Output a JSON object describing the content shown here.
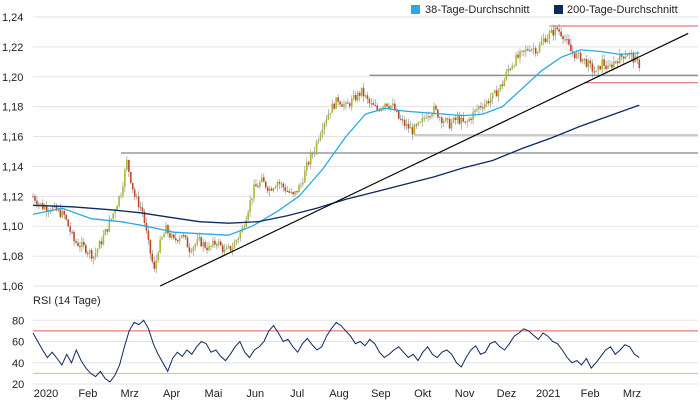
{
  "chart_data": [
    {
      "type": "candlestick",
      "title": "",
      "legend_position": "top-right",
      "ylim": [
        1.06,
        1.24
      ],
      "y_ticks": [
        "1,24",
        "1,22",
        "1,20",
        "1,18",
        "1,16",
        "1,14",
        "1,12",
        "1,10",
        "1,08",
        "1,06"
      ],
      "x_tick_labels": [
        "2020",
        "Feb",
        "Mrz",
        "Apr",
        "Mai",
        "Jun",
        "Jul",
        "Aug",
        "Sep",
        "Okt",
        "Nov",
        "Dez",
        "2021",
        "Feb",
        "Mrz"
      ],
      "close_path": [
        [
          0,
          1.12
        ],
        [
          5,
          1.113
        ],
        [
          10,
          1.112
        ],
        [
          16,
          1.107
        ],
        [
          21,
          1.09
        ],
        [
          27,
          1.085
        ],
        [
          31,
          1.08
        ],
        [
          35,
          1.09
        ],
        [
          40,
          1.105
        ],
        [
          45,
          1.123
        ],
        [
          48,
          1.143
        ],
        [
          52,
          1.12
        ],
        [
          56,
          1.11
        ],
        [
          59,
          1.088
        ],
        [
          62,
          1.07
        ],
        [
          64,
          1.085
        ],
        [
          68,
          1.098
        ],
        [
          72,
          1.09
        ],
        [
          76,
          1.095
        ],
        [
          80,
          1.085
        ],
        [
          85,
          1.09
        ],
        [
          90,
          1.085
        ],
        [
          94,
          1.09
        ],
        [
          98,
          1.083
        ],
        [
          102,
          1.086
        ],
        [
          107,
          1.098
        ],
        [
          110,
          1.112
        ],
        [
          113,
          1.125
        ],
        [
          117,
          1.13
        ],
        [
          121,
          1.125
        ],
        [
          125,
          1.13
        ],
        [
          129,
          1.125
        ],
        [
          133,
          1.12
        ],
        [
          137,
          1.128
        ],
        [
          140,
          1.14
        ],
        [
          144,
          1.152
        ],
        [
          148,
          1.168
        ],
        [
          152,
          1.178
        ],
        [
          156,
          1.185
        ],
        [
          160,
          1.18
        ],
        [
          164,
          1.185
        ],
        [
          168,
          1.19
        ],
        [
          172,
          1.182
        ],
        [
          176,
          1.178
        ],
        [
          180,
          1.183
        ],
        [
          184,
          1.18
        ],
        [
          187,
          1.172
        ],
        [
          190,
          1.168
        ],
        [
          194,
          1.164
        ],
        [
          198,
          1.168
        ],
        [
          201,
          1.175
        ],
        [
          205,
          1.178
        ],
        [
          209,
          1.172
        ],
        [
          213,
          1.168
        ],
        [
          217,
          1.172
        ],
        [
          221,
          1.168
        ],
        [
          225,
          1.175
        ],
        [
          228,
          1.18
        ],
        [
          232,
          1.183
        ],
        [
          236,
          1.188
        ],
        [
          240,
          1.195
        ],
        [
          243,
          1.205
        ],
        [
          247,
          1.212
        ],
        [
          251,
          1.216
        ],
        [
          254,
          1.22
        ],
        [
          258,
          1.218
        ],
        [
          261,
          1.225
        ],
        [
          264,
          1.228
        ],
        [
          268,
          1.232
        ],
        [
          271,
          1.228
        ],
        [
          275,
          1.217
        ],
        [
          278,
          1.214
        ],
        [
          281,
          1.212
        ],
        [
          284,
          1.208
        ],
        [
          288,
          1.202
        ],
        [
          291,
          1.21
        ],
        [
          294,
          1.205
        ],
        [
          297,
          1.21
        ],
        [
          300,
          1.213
        ],
        [
          304,
          1.216
        ],
        [
          307,
          1.212
        ],
        [
          310,
          1.208
        ]
      ],
      "series": [
        {
          "name": "38-Tage-Durchschnitt",
          "color": "#29aae2",
          "points": [
            [
              0,
              1.108
            ],
            [
              15,
              1.112
            ],
            [
              30,
              1.105
            ],
            [
              45,
              1.103
            ],
            [
              58,
              1.1
            ],
            [
              72,
              1.096
            ],
            [
              85,
              1.095
            ],
            [
              100,
              1.094
            ],
            [
              112,
              1.1
            ],
            [
              125,
              1.11
            ],
            [
              136,
              1.12
            ],
            [
              148,
              1.138
            ],
            [
              160,
              1.16
            ],
            [
              170,
              1.175
            ],
            [
              180,
              1.179
            ],
            [
              190,
              1.177
            ],
            [
              200,
              1.176
            ],
            [
              210,
              1.175
            ],
            [
              220,
              1.174
            ],
            [
              230,
              1.175
            ],
            [
              240,
              1.18
            ],
            [
              250,
              1.192
            ],
            [
              260,
              1.204
            ],
            [
              270,
              1.213
            ],
            [
              280,
              1.218
            ],
            [
              290,
              1.217
            ],
            [
              300,
              1.215
            ],
            [
              310,
              1.216
            ]
          ]
        },
        {
          "name": "200-Tage-Durchschnitt",
          "color": "#0b2a5e",
          "points": [
            [
              0,
              1.114
            ],
            [
              20,
              1.113
            ],
            [
              40,
              1.111
            ],
            [
              55,
              1.109
            ],
            [
              70,
              1.106
            ],
            [
              85,
              1.103
            ],
            [
              100,
              1.102
            ],
            [
              115,
              1.103
            ],
            [
              130,
              1.107
            ],
            [
              145,
              1.112
            ],
            [
              160,
              1.118
            ],
            [
              175,
              1.123
            ],
            [
              190,
              1.128
            ],
            [
              205,
              1.133
            ],
            [
              220,
              1.139
            ],
            [
              235,
              1.144
            ],
            [
              250,
              1.152
            ],
            [
              265,
              1.159
            ],
            [
              280,
              1.167
            ],
            [
              295,
              1.174
            ],
            [
              310,
              1.181
            ]
          ]
        }
      ],
      "trendline": [
        [
          65,
          1.06
        ],
        [
          335,
          1.229
        ]
      ],
      "horizontal_levels": [
        {
          "y": 1.234,
          "color": "#e05a5a",
          "x_start": 264,
          "x_end": 340
        },
        {
          "y": 1.201,
          "color": "#666666",
          "x_start": 172,
          "x_end": 340
        },
        {
          "y": 1.196,
          "color": "#e05a5a",
          "x_start": 282,
          "x_end": 340
        },
        {
          "y": 1.161,
          "color": "#999999",
          "x_start": 195,
          "x_end": 340
        },
        {
          "y": 1.149,
          "color": "#666666",
          "x_start": 45,
          "x_end": 340
        }
      ]
    },
    {
      "type": "line",
      "title": "RSI (14 Tage)",
      "ylim": [
        20,
        85
      ],
      "y_ticks": [
        "80",
        "60",
        "40",
        "20"
      ],
      "overbought": 70,
      "oversold": 30,
      "overbought_color": "#e05a5a",
      "oversold_color": "#d4cc44",
      "line_color": "#0b2a5e",
      "values": [
        68,
        60,
        52,
        45,
        50,
        44,
        38,
        48,
        40,
        52,
        42,
        35,
        30,
        27,
        32,
        25,
        22,
        28,
        38,
        55,
        70,
        78,
        76,
        80,
        72,
        58,
        48,
        40,
        32,
        44,
        50,
        46,
        52,
        48,
        55,
        60,
        58,
        50,
        52,
        46,
        42,
        48,
        55,
        60,
        50,
        45,
        52,
        55,
        60,
        70,
        75,
        68,
        60,
        62,
        55,
        50,
        58,
        63,
        57,
        52,
        55,
        65,
        72,
        78,
        75,
        70,
        65,
        58,
        60,
        56,
        62,
        58,
        50,
        45,
        48,
        52,
        55,
        50,
        45,
        48,
        42,
        50,
        55,
        48,
        45,
        50,
        52,
        48,
        40,
        36,
        45,
        52,
        56,
        48,
        50,
        58,
        60,
        55,
        52,
        58,
        65,
        68,
        72,
        70,
        66,
        62,
        68,
        65,
        60,
        58,
        52,
        45,
        40,
        42,
        38,
        44,
        35,
        40,
        46,
        52,
        55,
        48,
        52,
        57,
        55,
        48,
        45
      ]
    }
  ],
  "legend": {
    "items": [
      {
        "label": "38-Tage-Durchschnitt",
        "color": "#29aae2"
      },
      {
        "label": "200-Tage-Durchschnitt",
        "color": "#0b2a5e"
      }
    ]
  },
  "colors": {
    "candle_up": "#a8b92f",
    "candle_down": "#c1442b",
    "grid": "#e3e3e3",
    "trend": "#000000"
  }
}
